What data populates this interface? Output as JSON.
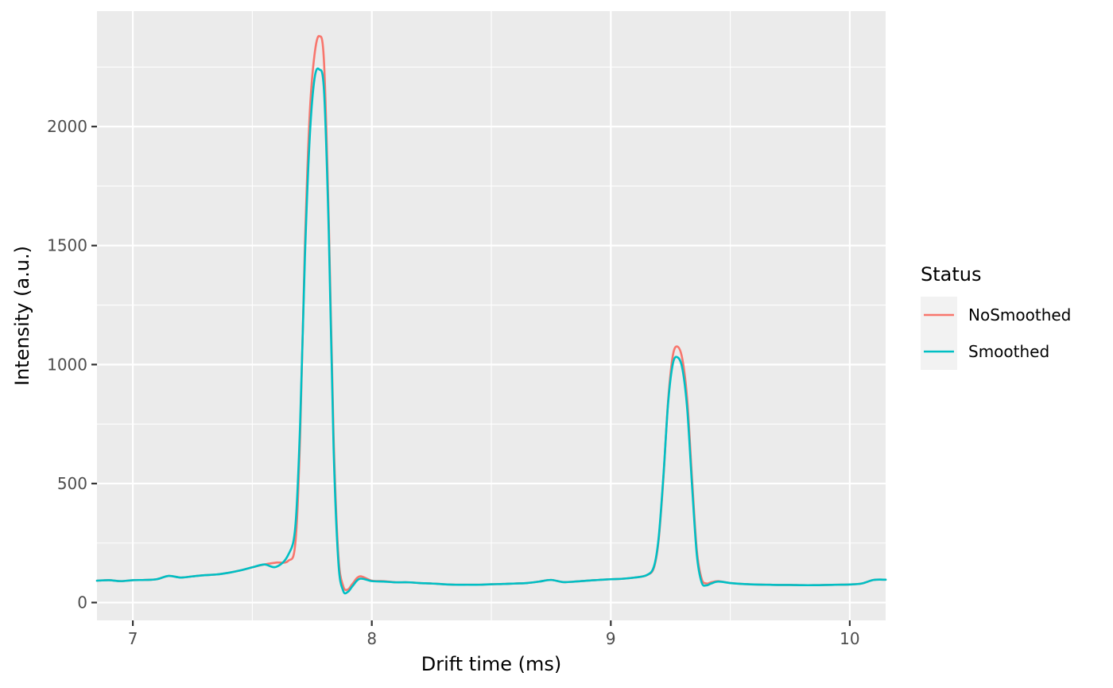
{
  "chart_data": {
    "type": "line",
    "title": "",
    "xlabel": "Drift time (ms)",
    "ylabel": "Intensity (a.u.)",
    "xlim": [
      6.85,
      10.15
    ],
    "ylim": [
      -75,
      2485
    ],
    "x_ticks": [
      7,
      8,
      9,
      10
    ],
    "x_tick_labels": [
      "7",
      "8",
      "9",
      "10"
    ],
    "x_minor_ticks": [
      7.5,
      8.5,
      9.5
    ],
    "y_ticks": [
      0,
      500,
      1000,
      1500,
      2000
    ],
    "y_tick_labels": [
      "0",
      "500",
      "1000",
      "1500",
      "2000"
    ],
    "y_minor_ticks": [
      250,
      750,
      1250,
      1750,
      2250
    ],
    "grid": true,
    "legend": {
      "title": "Status",
      "placement": "right"
    },
    "series": [
      {
        "name": "NoSmoothed",
        "color": "#F8766D",
        "x": [
          6.85,
          6.9,
          6.95,
          7.0,
          7.05,
          7.1,
          7.15,
          7.2,
          7.25,
          7.3,
          7.35,
          7.4,
          7.45,
          7.5,
          7.55,
          7.6,
          7.65,
          7.68,
          7.7,
          7.72,
          7.74,
          7.76,
          7.78,
          7.8,
          7.82,
          7.84,
          7.86,
          7.88,
          7.9,
          7.92,
          7.95,
          8.0,
          8.05,
          8.1,
          8.15,
          8.2,
          8.25,
          8.3,
          8.35,
          8.4,
          8.45,
          8.5,
          8.55,
          8.6,
          8.65,
          8.7,
          8.75,
          8.8,
          8.85,
          8.9,
          8.95,
          9.0,
          9.05,
          9.1,
          9.15,
          9.18,
          9.2,
          9.22,
          9.24,
          9.26,
          9.28,
          9.3,
          9.32,
          9.34,
          9.36,
          9.38,
          9.4,
          9.42,
          9.45,
          9.5,
          9.55,
          9.6,
          9.65,
          9.7,
          9.75,
          9.8,
          9.85,
          9.9,
          9.95,
          10.0,
          10.05,
          10.1,
          10.15
        ],
        "values": [
          92,
          94,
          90,
          94,
          95,
          98,
          112,
          105,
          110,
          115,
          118,
          125,
          135,
          148,
          160,
          168,
          175,
          250,
          700,
          1500,
          2050,
          2300,
          2380,
          2270,
          1600,
          700,
          200,
          70,
          55,
          80,
          110,
          92,
          90,
          85,
          85,
          82,
          80,
          77,
          75,
          75,
          75,
          77,
          78,
          80,
          82,
          88,
          95,
          86,
          88,
          92,
          95,
          98,
          100,
          105,
          115,
          145,
          260,
          520,
          850,
          1040,
          1075,
          1020,
          850,
          520,
          220,
          100,
          80,
          85,
          90,
          82,
          78,
          76,
          75,
          74,
          74,
          73,
          73,
          74,
          75,
          76,
          80,
          95,
          96
        ]
      },
      {
        "name": "Smoothed",
        "color": "#00BFC4",
        "x": [
          6.85,
          6.9,
          6.95,
          7.0,
          7.05,
          7.1,
          7.15,
          7.2,
          7.25,
          7.3,
          7.35,
          7.4,
          7.45,
          7.5,
          7.55,
          7.6,
          7.65,
          7.68,
          7.7,
          7.72,
          7.74,
          7.76,
          7.78,
          7.8,
          7.82,
          7.84,
          7.86,
          7.88,
          7.9,
          7.92,
          7.95,
          8.0,
          8.05,
          8.1,
          8.15,
          8.2,
          8.25,
          8.3,
          8.35,
          8.4,
          8.45,
          8.5,
          8.55,
          8.6,
          8.65,
          8.7,
          8.75,
          8.8,
          8.85,
          8.9,
          8.95,
          9.0,
          9.05,
          9.1,
          9.15,
          9.18,
          9.2,
          9.22,
          9.24,
          9.26,
          9.28,
          9.3,
          9.32,
          9.34,
          9.36,
          9.38,
          9.4,
          9.42,
          9.45,
          9.5,
          9.55,
          9.6,
          9.65,
          9.7,
          9.75,
          9.8,
          9.85,
          9.9,
          9.95,
          10.0,
          10.05,
          10.1,
          10.15
        ],
        "values": [
          92,
          94,
          90,
          94,
          95,
          98,
          112,
          105,
          110,
          115,
          118,
          125,
          135,
          148,
          160,
          150,
          200,
          320,
          750,
          1450,
          1950,
          2200,
          2240,
          2150,
          1550,
          650,
          170,
          50,
          45,
          70,
          100,
          90,
          88,
          85,
          85,
          82,
          80,
          77,
          75,
          75,
          75,
          77,
          78,
          80,
          82,
          88,
          95,
          86,
          88,
          92,
          95,
          98,
          100,
          105,
          115,
          150,
          270,
          530,
          840,
          1005,
          1030,
          980,
          810,
          490,
          200,
          85,
          72,
          80,
          88,
          82,
          78,
          76,
          75,
          74,
          74,
          73,
          73,
          74,
          75,
          76,
          80,
          95,
          96
        ]
      }
    ]
  }
}
